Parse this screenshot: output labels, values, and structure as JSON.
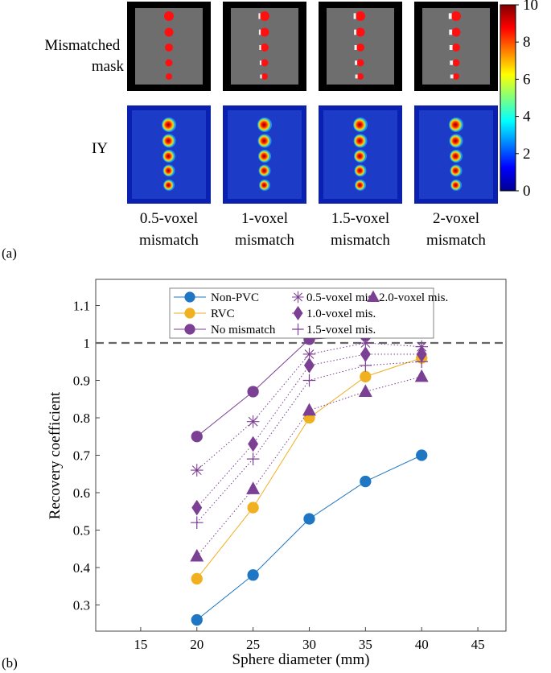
{
  "panel_a": {
    "label": "(a)",
    "row_labels": [
      "Mismatched\nmask",
      "IY"
    ],
    "column_labels": [
      "0.5-voxel\nmismatch",
      "1-voxel\nmismatch",
      "1.5-voxel\nmismatch",
      "2-voxel\nmismatch"
    ],
    "colorbar": {
      "min": 0,
      "max": 10,
      "ticks": [
        "0",
        "2",
        "4",
        "6",
        "8",
        "10"
      ]
    }
  },
  "panel_b": {
    "label": "(b)"
  },
  "colors": {
    "blue": "#1f77c4",
    "orange": "#f0b020",
    "purple": "#7b3f93",
    "reference_line": "#666666",
    "mask_background": "#6e6e6e",
    "iy_background": "#1c3cc8"
  },
  "chart_data": {
    "type": "line",
    "xlabel": "Sphere diameter (mm)",
    "ylabel": "Recovery coefficient",
    "xlim": [
      11,
      47.5
    ],
    "ylim": [
      0.23,
      1.17
    ],
    "x_ticks": [
      "15",
      "20",
      "25",
      "30",
      "35",
      "40",
      "45"
    ],
    "y_ticks": [
      "0.3",
      "0.4",
      "0.5",
      "0.6",
      "0.7",
      "0.8",
      "0.9",
      "1",
      "1.1"
    ],
    "reference_line": 1,
    "x": [
      20,
      25,
      30,
      35,
      40
    ],
    "legend_position": "top",
    "series": [
      {
        "name": "Non-PVC",
        "values": [
          0.26,
          0.38,
          0.53,
          0.63,
          0.7
        ],
        "color": "#1f77c4",
        "marker": "circle",
        "line": "solid"
      },
      {
        "name": "RVC",
        "values": [
          0.37,
          0.56,
          0.8,
          0.91,
          0.96
        ],
        "color": "#f0b020",
        "marker": "circle",
        "line": "solid"
      },
      {
        "name": "No mismatch",
        "values": [
          0.75,
          0.87,
          1.01,
          1.02,
          1.04
        ],
        "color": "#7b3f93",
        "marker": "circle",
        "line": "solid"
      },
      {
        "name": "0.5-voxel mis.",
        "values": [
          0.66,
          0.79,
          0.97,
          1.0,
          0.99
        ],
        "color": "#7b3f93",
        "marker": "asterisk",
        "line": "dotted"
      },
      {
        "name": "1.0-voxel mis.",
        "values": [
          0.56,
          0.73,
          0.94,
          0.97,
          0.97
        ],
        "color": "#7b3f93",
        "marker": "diamond",
        "line": "dotted"
      },
      {
        "name": "1.5-voxel mis.",
        "values": [
          0.52,
          0.69,
          0.9,
          0.94,
          0.95
        ],
        "color": "#7b3f93",
        "marker": "plus",
        "line": "dotted"
      },
      {
        "name": "2.0-voxel mis.",
        "values": [
          0.43,
          0.61,
          0.82,
          0.87,
          0.91
        ],
        "color": "#7b3f93",
        "marker": "triangle",
        "line": "dotted"
      }
    ]
  }
}
